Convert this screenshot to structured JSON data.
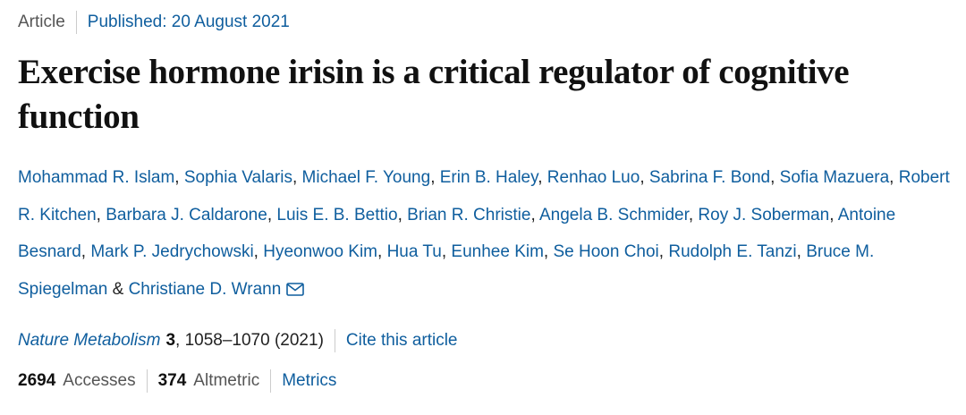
{
  "header": {
    "type": "Article",
    "published": "Published: 20 August 2021"
  },
  "title": "Exercise hormone irisin is a critical regulator of cognitive function",
  "authors": [
    "Mohammad R. Islam",
    "Sophia Valaris",
    "Michael F. Young",
    "Erin B. Haley",
    "Renhao Luo",
    "Sabrina F. Bond",
    "Sofia Mazuera",
    "Robert R. Kitchen",
    "Barbara J. Caldarone",
    "Luis E. B. Bettio",
    "Brian R. Christie",
    "Angela B. Schmider",
    "Roy J. Soberman",
    "Antoine Besnard",
    "Mark P. Jedrychowski",
    "Hyeonwoo Kim",
    "Hua Tu",
    "Eunhee Kim",
    "Se Hoon Choi",
    "Rudolph E. Tanzi",
    "Bruce M. Spiegelman",
    "Christiane D. Wrann"
  ],
  "author_separator": ", ",
  "author_final_separator": " & ",
  "citation": {
    "journal": "Nature Metabolism",
    "volume": "3",
    "details": ", 1058–1070 (2021)",
    "cite_link": "Cite this article"
  },
  "metrics": {
    "accesses": "2694",
    "accesses_label": "Accesses",
    "altmetric": "374",
    "altmetric_label": "Altmetric",
    "metrics_link": "Metrics"
  }
}
